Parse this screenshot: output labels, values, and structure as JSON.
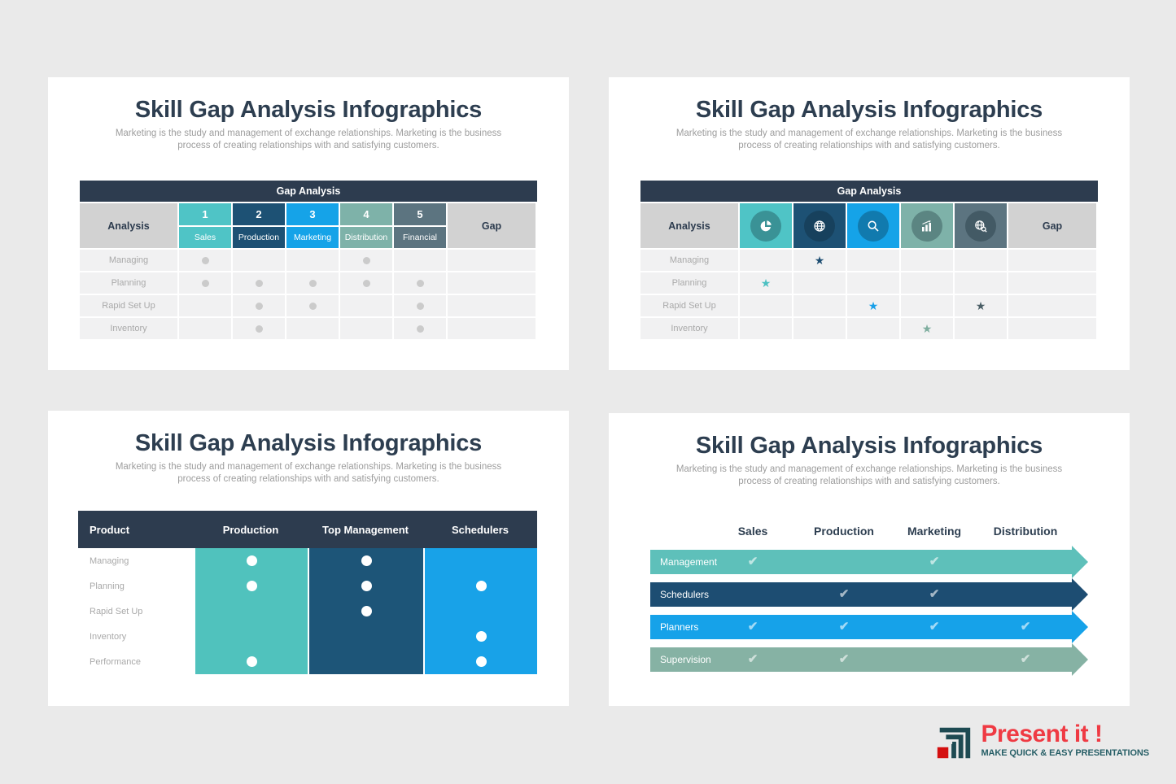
{
  "background": "#eaeaea",
  "palette": {
    "navy": "#2d3c4f",
    "teal": "#4fc4c6",
    "darkblue": "#1d5174",
    "blue": "#15a3e8",
    "sage": "#7eb2a9",
    "slate": "#5c7480",
    "header_gray": "#d2d2d2",
    "row_bg": "#f1f1f2",
    "row_label_gray": "#a9a9a9",
    "dot_gray": "#cbcbcb"
  },
  "shared": {
    "title": "Skill Gap Analysis Infographics",
    "subtitle_lines": [
      "Marketing is the study and management of exchange relationships. Marketing is the business",
      "process of creating relationships with and satisfying customers."
    ]
  },
  "panel1": {
    "table_title": "Gap Analysis",
    "left_header": "Analysis",
    "right_header": "Gap",
    "columns": [
      {
        "number": "1",
        "label": "Sales",
        "color": "#4fc4c6"
      },
      {
        "number": "2",
        "label": "Production",
        "color": "#1d5174"
      },
      {
        "number": "3",
        "label": "Marketing",
        "color": "#15a3e8"
      },
      {
        "number": "4",
        "label": "Distribution",
        "color": "#7eb2a9"
      },
      {
        "number": "5",
        "label": "Financial",
        "color": "#5c7480"
      }
    ],
    "rows": [
      {
        "label": "Managing",
        "dots": [
          1,
          0,
          0,
          1,
          0
        ]
      },
      {
        "label": "Planning",
        "dots": [
          1,
          1,
          1,
          1,
          1
        ]
      },
      {
        "label": "Rapid Set Up",
        "dots": [
          0,
          1,
          1,
          0,
          1
        ]
      },
      {
        "label": "Inventory",
        "dots": [
          0,
          1,
          0,
          0,
          1
        ]
      }
    ]
  },
  "panel2": {
    "table_title": "Gap Analysis",
    "left_header": "Analysis",
    "right_header": "Gap",
    "columns": [
      {
        "icon": "pie-chart-icon",
        "color": "#4fc4c6"
      },
      {
        "icon": "globe-icon",
        "color": "#1d5174"
      },
      {
        "icon": "search-icon",
        "color": "#15a3e8"
      },
      {
        "icon": "bar-chart-icon",
        "color": "#7eb2a9"
      },
      {
        "icon": "globe-search-icon",
        "color": "#5c7480"
      }
    ],
    "rows": [
      {
        "label": "Managing",
        "stars": [
          {
            "col": 1,
            "color": "#1d4d72"
          }
        ]
      },
      {
        "label": "Planning",
        "stars": [
          {
            "col": 0,
            "color": "#4cc0c2"
          }
        ]
      },
      {
        "label": "Rapid Set Up",
        "stars": [
          {
            "col": 2,
            "color": "#189fe8"
          },
          {
            "col": 4,
            "color": "#4a5e66"
          }
        ]
      },
      {
        "label": "Inventory",
        "stars": [
          {
            "col": 3,
            "color": "#7fae9f"
          }
        ]
      }
    ]
  },
  "panel3": {
    "headers": [
      "Product",
      "Production",
      "Top Management",
      "Schedulers"
    ],
    "column_colors": [
      "#50c2bd",
      "#1d5578",
      "#18a2e8"
    ],
    "rows": [
      {
        "label": "Managing",
        "dots": [
          1,
          1,
          0
        ]
      },
      {
        "label": "Planning",
        "dots": [
          1,
          1,
          1
        ]
      },
      {
        "label": "Rapid Set Up",
        "dots": [
          0,
          1,
          0
        ]
      },
      {
        "label": "Inventory",
        "dots": [
          0,
          0,
          1
        ]
      },
      {
        "label": "Performance",
        "dots": [
          1,
          0,
          1
        ]
      }
    ]
  },
  "panel4": {
    "column_headers": [
      "Sales",
      "Production",
      "Marketing",
      "Distribution"
    ],
    "rows": [
      {
        "label": "Management",
        "color": "#5ec0ba",
        "checks": [
          1,
          0,
          1,
          0
        ]
      },
      {
        "label": "Schedulers",
        "color": "#1d4d72",
        "checks": [
          0,
          1,
          1,
          0
        ]
      },
      {
        "label": "Planners",
        "color": "#16a2e9",
        "checks": [
          1,
          1,
          1,
          1
        ]
      },
      {
        "label": "Supervision",
        "color": "#86b2a4",
        "checks": [
          1,
          1,
          0,
          1
        ]
      }
    ]
  },
  "logo": {
    "brand": "Present it !",
    "tagline": "MAKE QUICK & EASY PRESENTATIONS",
    "brand_color": "#ef3a43",
    "tagline_color": "#265e66",
    "mark_teal": "#1d4a52",
    "mark_red": "#d40f0f"
  }
}
